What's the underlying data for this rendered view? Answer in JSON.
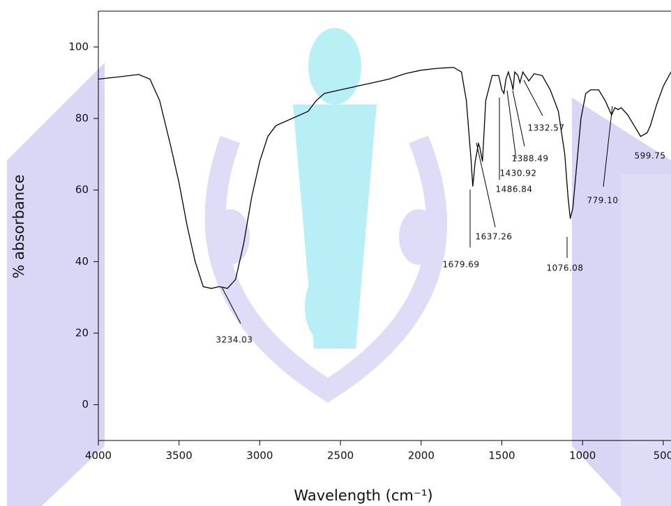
{
  "chart_data": {
    "type": "line",
    "xlabel": "Wavelength (cm⁻¹)",
    "ylabel": "% absorbance",
    "color": "#000000",
    "xlim": [
      4000,
      452
    ],
    "ylim": [
      -10,
      110
    ],
    "xticks": [
      4000,
      3500,
      3000,
      2500,
      2000,
      1500,
      1000,
      500
    ],
    "yticks": [
      0,
      20,
      40,
      60,
      80,
      100
    ],
    "x": [
      4000,
      3900,
      3750,
      3680,
      3620,
      3550,
      3500,
      3450,
      3400,
      3350,
      3300,
      3250,
      3200,
      3150,
      3100,
      3050,
      3000,
      2950,
      2900,
      2800,
      2700,
      2650,
      2600,
      2500,
      2400,
      2300,
      2200,
      2100,
      2000,
      1900,
      1800,
      1750,
      1720,
      1690,
      1680,
      1665,
      1645,
      1637,
      1620,
      1600,
      1560,
      1520,
      1500,
      1487,
      1475,
      1460,
      1440,
      1431,
      1420,
      1400,
      1388,
      1370,
      1340,
      1333,
      1300,
      1250,
      1200,
      1150,
      1110,
      1090,
      1076,
      1060,
      1040,
      1010,
      980,
      950,
      900,
      860,
      820,
      800,
      780,
      760,
      720,
      680,
      640,
      600,
      580,
      540,
      500,
      452
    ],
    "values": [
      91,
      91.5,
      92.3,
      91,
      85,
      72,
      62,
      50,
      40,
      33,
      32.5,
      33,
      32.5,
      35,
      45,
      58,
      68,
      75,
      78,
      80,
      82,
      85,
      87,
      88,
      89,
      90,
      91,
      92.5,
      93.5,
      94,
      94.3,
      93,
      85,
      68,
      61,
      68,
      73,
      72,
      68,
      85,
      92,
      92,
      88,
      87,
      91,
      93,
      90,
      88,
      93,
      92,
      90,
      93,
      91,
      90.5,
      92.5,
      92,
      88,
      82,
      70,
      58,
      52,
      55,
      65,
      80,
      87,
      88,
      88,
      85,
      81,
      83,
      82.5,
      83,
      81,
      78,
      75,
      76,
      78,
      84,
      89,
      93
    ],
    "annotations": [
      "3234.03",
      "1679.69",
      "1637.26",
      "1486.84",
      "1430.92",
      "1388.49",
      "1332.57",
      "1076.08",
      "779.10",
      "599.75"
    ]
  }
}
